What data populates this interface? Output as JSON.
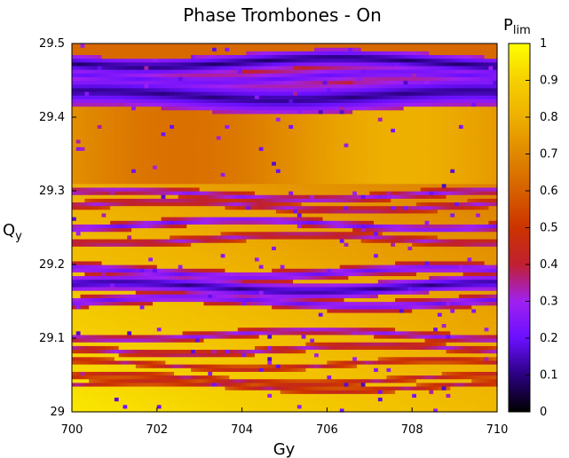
{
  "chart_data": {
    "type": "heatmap",
    "title": "Phase Trombones - On",
    "xlabel": "Gy",
    "ylabel_main": "Q",
    "ylabel_sub": "y",
    "colorbar_label_main": "P",
    "colorbar_label_sub": "lim",
    "xlim": [
      700,
      710
    ],
    "ylim": [
      29,
      29.5
    ],
    "colorbar_range": [
      0,
      1
    ],
    "x_ticks": [
      "700",
      "702",
      "704",
      "706",
      "708",
      "710"
    ],
    "y_ticks": [
      "29",
      "29.1",
      "29.2",
      "29.3",
      "29.4",
      "29.5"
    ],
    "colorbar_ticks": [
      "0",
      "0.1",
      "0.2",
      "0.3",
      "0.4",
      "0.5",
      "0.6",
      "0.7",
      "0.8",
      "0.9",
      "1"
    ],
    "colormap": "gnuplot-pm3d (black-purple-red-orange-yellow)",
    "colormap_stops": [
      "#000000",
      "#2a0080",
      "#6a10ff",
      "#a020f0",
      "#c02030",
      "#cc3300",
      "#d66000",
      "#e08800",
      "#eeb000",
      "#f5d000",
      "#ffff00"
    ],
    "dark_bands": [
      {
        "qy": 29.475,
        "level": 0.08,
        "width": 0.012
      },
      {
        "qy": 29.455,
        "level": 0.2,
        "width": 0.015
      },
      {
        "qy": 29.43,
        "level": 0.1,
        "width": 0.02
      },
      {
        "qy": 29.295,
        "level": 0.25,
        "width": 0.006
      },
      {
        "qy": 29.28,
        "level": 0.3,
        "width": 0.006
      },
      {
        "qy": 29.255,
        "level": 0.2,
        "width": 0.006
      },
      {
        "qy": 29.235,
        "level": 0.3,
        "width": 0.006
      },
      {
        "qy": 29.19,
        "level": 0.2,
        "width": 0.008
      },
      {
        "qy": 29.17,
        "level": 0.1,
        "width": 0.01
      },
      {
        "qy": 29.15,
        "level": 0.2,
        "width": 0.008
      },
      {
        "qy": 29.105,
        "level": 0.25,
        "width": 0.006
      },
      {
        "qy": 29.085,
        "level": 0.3,
        "width": 0.005
      },
      {
        "qy": 29.065,
        "level": 0.35,
        "width": 0.004
      },
      {
        "qy": 29.045,
        "level": 0.35,
        "width": 0.004
      },
      {
        "qy": 29.035,
        "level": 0.35,
        "width": 0.004
      }
    ]
  }
}
